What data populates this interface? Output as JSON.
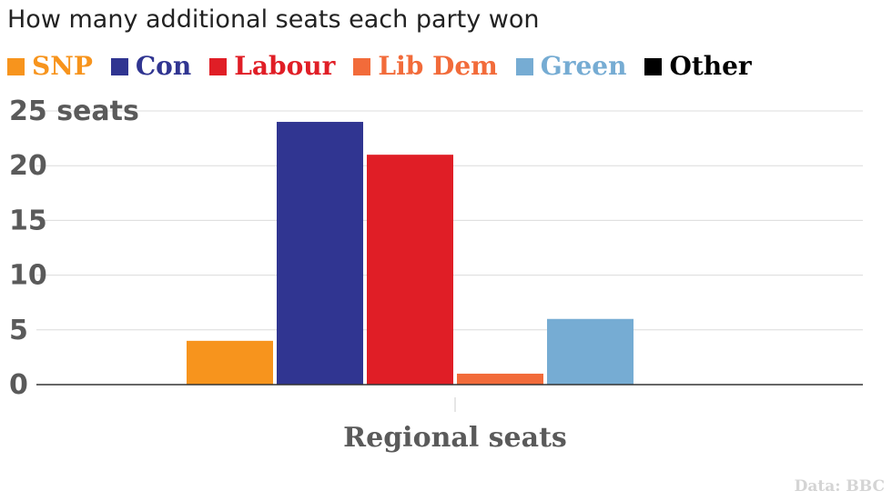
{
  "title": "How many additional seats each party won",
  "source": "Data: BBC",
  "chart_data": {
    "type": "bar",
    "title": "How many additional seats each party won",
    "categories": [
      "Regional seats"
    ],
    "xlabel": "",
    "ylabel": "",
    "ylim": [
      0,
      25
    ],
    "yticks": [
      0,
      5,
      10,
      15,
      20,
      25
    ],
    "ytick_labels": [
      "0",
      "5",
      "10",
      "15",
      "20",
      "25 seats"
    ],
    "grid": true,
    "legend_position": "top-left",
    "series": [
      {
        "name": "SNP",
        "color": "#f7941d",
        "values": [
          4
        ]
      },
      {
        "name": "Con",
        "color": "#303591",
        "values": [
          24
        ]
      },
      {
        "name": "Labour",
        "color": "#e01e26",
        "values": [
          21
        ]
      },
      {
        "name": "Lib Dem",
        "color": "#f26b3a",
        "values": [
          1
        ]
      },
      {
        "name": "Green",
        "color": "#76acd3",
        "values": [
          6
        ]
      },
      {
        "name": "Other",
        "color": "#000000",
        "values": [
          0
        ]
      }
    ]
  }
}
